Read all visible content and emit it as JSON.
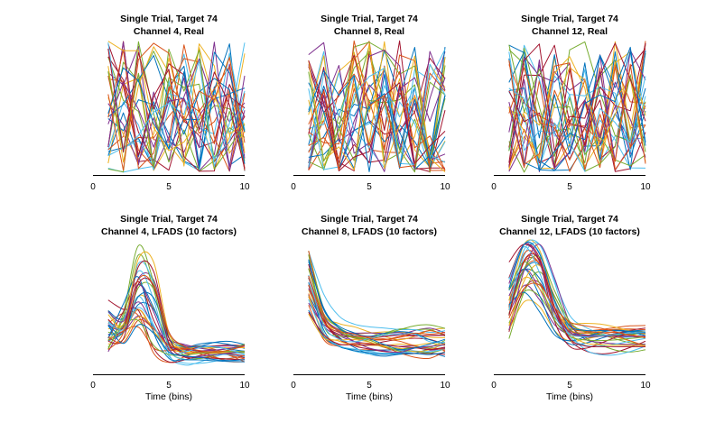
{
  "chart_data": [
    {
      "type": "line",
      "title": "Single Trial, Target 74",
      "subtitle": "Channel 4, Real",
      "xlabel": "",
      "xlim": [
        0,
        10
      ],
      "xticks": [
        0,
        5,
        10
      ],
      "x": [
        1,
        2,
        3,
        4,
        5,
        6,
        7,
        8,
        9,
        10
      ],
      "n_traces": 30,
      "kind": "real",
      "seed": 11,
      "ylim": [
        0,
        1
      ],
      "grid": false
    },
    {
      "type": "line",
      "title": "Single Trial, Target 74",
      "subtitle": "Channel 8, Real",
      "xlabel": "",
      "xlim": [
        0,
        10
      ],
      "xticks": [
        0,
        5,
        10
      ],
      "x": [
        1,
        2,
        3,
        4,
        5,
        6,
        7,
        8,
        9,
        10
      ],
      "n_traces": 30,
      "kind": "real",
      "seed": 23,
      "ylim": [
        0,
        1
      ],
      "grid": false
    },
    {
      "type": "line",
      "title": "Single Trial, Target 74",
      "subtitle": "Channel 12, Real",
      "xlabel": "",
      "xlim": [
        0,
        10
      ],
      "xticks": [
        0,
        5,
        10
      ],
      "x": [
        1,
        2,
        3,
        4,
        5,
        6,
        7,
        8,
        9,
        10
      ],
      "n_traces": 30,
      "kind": "real",
      "seed": 37,
      "ylim": [
        0,
        1
      ],
      "grid": false
    },
    {
      "type": "line",
      "title": "Single Trial, Target 74",
      "subtitle": "Channel 4, LFADS (10 factors)",
      "xlabel": "Time (bins)",
      "xlim": [
        0,
        10
      ],
      "xticks": [
        0,
        5,
        10
      ],
      "x": [
        1,
        2,
        3,
        4,
        5,
        6,
        7,
        8,
        9,
        10
      ],
      "n_traces": 30,
      "kind": "lfads4",
      "seed": 41,
      "ylim": [
        0,
        1
      ],
      "grid": false
    },
    {
      "type": "line",
      "title": "Single Trial, Target 74",
      "subtitle": "Channel 8, LFADS (10 factors)",
      "xlabel": "Time (bins)",
      "xlim": [
        0,
        10
      ],
      "xticks": [
        0,
        5,
        10
      ],
      "x": [
        1,
        2,
        3,
        4,
        5,
        6,
        7,
        8,
        9,
        10
      ],
      "n_traces": 30,
      "kind": "lfads8",
      "seed": 53,
      "ylim": [
        0,
        1
      ],
      "grid": false
    },
    {
      "type": "line",
      "title": "Single Trial, Target 74",
      "subtitle": "Channel 12, LFADS (10 factors)",
      "xlabel": "Time (bins)",
      "xlim": [
        0,
        10
      ],
      "xticks": [
        0,
        5,
        10
      ],
      "x": [
        1,
        2,
        3,
        4,
        5,
        6,
        7,
        8,
        9,
        10
      ],
      "n_traces": 30,
      "kind": "lfads12",
      "seed": 67,
      "ylim": [
        0,
        1
      ],
      "grid": false
    }
  ],
  "colors": [
    "#0072BD",
    "#D95319",
    "#EDB120",
    "#7E2F8E",
    "#77AC30",
    "#4DBEEE",
    "#A2142F"
  ]
}
